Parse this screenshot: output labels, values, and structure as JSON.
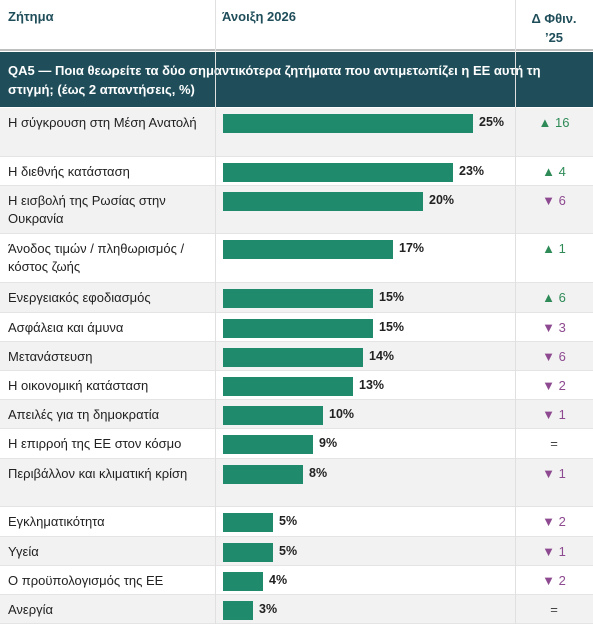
{
  "chart_data": {
    "type": "bar",
    "columns": [
      "Ζήτημα",
      "Άνοιξη 2026",
      "Δ Φθιν. ’25"
    ],
    "title": "QA5 — Ποια θεωρείτε τα δύο σημαντικότερα ζητήματα που αντιμετωπίζει η ΕΕ αυτή τη στιγμή; (έως 2 απαντήσεις, %)",
    "categories": [
      "Η σύγκρουση στη Μέση Ανατολή",
      "Η διεθνής κατάσταση",
      "Η εισβολή της Ρωσίας στην Ουκρανία",
      "Άνοδος τιμών / πληθωρισμός / κόστος ζωής",
      "Ενεργειακός εφοδιασμός",
      "Ασφάλεια και άμυνα",
      "Μετανάστευση",
      "Η οικονομική κατάσταση",
      "Απειλές για τη δημοκρατία",
      "Η επιρροή της ΕΕ στον κόσμο",
      "Περιβάλλον και κλιματική κρίση",
      "Εγκληματικότητα",
      "Υγεία",
      "Ο προϋπολογισμός της ΕΕ",
      "Ανεργία"
    ],
    "values": [
      25,
      23,
      20,
      17,
      15,
      15,
      14,
      13,
      10,
      9,
      8,
      5,
      5,
      4,
      3
    ],
    "value_labels": [
      "25%",
      "23%",
      "20%",
      "17%",
      "15%",
      "15%",
      "14%",
      "13%",
      "10%",
      "9%",
      "8%",
      "5%",
      "5%",
      "4%",
      "3%"
    ],
    "color": "#1f8a6c",
    "change": [
      16,
      4,
      -6,
      1,
      6,
      -3,
      -6,
      -2,
      -1,
      0,
      -1,
      -2,
      -1,
      -2,
      0
    ],
    "change_labels": [
      "▲ 16",
      "▲ 4",
      "▼ 6",
      "▲ 1",
      "▲ 6",
      "▼ 3",
      "▼ 6",
      "▼ 2",
      "▼ 1",
      "=",
      "▼ 1",
      "▼ 2",
      "▼ 1",
      "▼ 2",
      "="
    ]
  }
}
